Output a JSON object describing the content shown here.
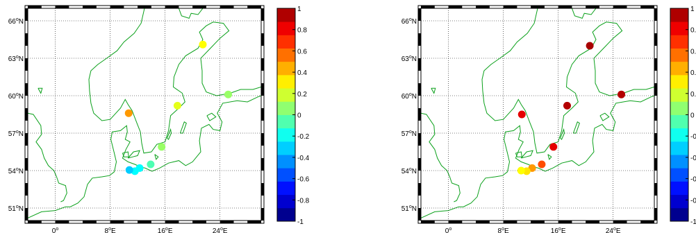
{
  "map_axes": {
    "lat_ticks": [
      {
        "value": 66,
        "label": "66",
        "suffix": "N"
      },
      {
        "value": 63,
        "label": "63",
        "suffix": "N"
      },
      {
        "value": 60,
        "label": "60",
        "suffix": "N"
      },
      {
        "value": 57,
        "label": "57",
        "suffix": "N"
      },
      {
        "value": 54,
        "label": "54",
        "suffix": "N"
      },
      {
        "value": 51,
        "label": "51",
        "suffix": "N"
      }
    ],
    "lon_ticks": [
      {
        "value": 0,
        "label": "0",
        "suffix": ""
      },
      {
        "value": 8,
        "label": "8",
        "suffix": "E"
      },
      {
        "value": 16,
        "label": "16",
        "suffix": "E"
      },
      {
        "value": 24,
        "label": "24",
        "suffix": "E"
      }
    ],
    "lon_range": [
      -4,
      30
    ],
    "lat_range": [
      50,
      67
    ],
    "degree_symbol": "o",
    "grid": true
  },
  "colorbar": {
    "range": [
      -1,
      1
    ],
    "colors": [
      "#00008f",
      "#0000cf",
      "#0010ff",
      "#0050ff",
      "#0090ff",
      "#00cfff",
      "#10ffef",
      "#50ffaf",
      "#90ff70",
      "#cfff30",
      "#ffef00",
      "#ffaf00",
      "#ff7000",
      "#ff3000",
      "#ef0000",
      "#af0000"
    ],
    "left_tick_labels": [
      "1",
      "0.8",
      "0.6",
      "0.4",
      "0.2",
      "0",
      "-0.2",
      "-0.4",
      "-0.6",
      "-0.8",
      "-1"
    ],
    "right_tick_labels": [
      "1",
      "0.",
      "0.",
      "0.",
      "0.",
      "0",
      "-0",
      "-0",
      "-0",
      "-0",
      "-1"
    ]
  },
  "coastline_color": "#0aa01a",
  "chart_data": [
    {
      "type": "map-scatter",
      "colormap": "jet",
      "color_range": [
        -1,
        1
      ],
      "stations": [
        {
          "lon": 21.5,
          "lat": 64.1,
          "value": 0.25
        },
        {
          "lon": 25.2,
          "lat": 60.1,
          "value": 0.05
        },
        {
          "lon": 17.8,
          "lat": 59.2,
          "value": 0.2
        },
        {
          "lon": 10.7,
          "lat": 58.6,
          "value": 0.45
        },
        {
          "lon": 15.5,
          "lat": 55.9,
          "value": 0.05
        },
        {
          "lon": 13.9,
          "lat": 54.5,
          "value": -0.1
        },
        {
          "lon": 12.3,
          "lat": 54.2,
          "value": -0.25
        },
        {
          "lon": 11.6,
          "lat": 53.95,
          "value": -0.25
        },
        {
          "lon": 10.8,
          "lat": 54.05,
          "value": -0.35
        }
      ]
    },
    {
      "type": "map-scatter",
      "colormap": "jet",
      "color_range": [
        -1,
        1
      ],
      "stations": [
        {
          "lon": 20.6,
          "lat": 64.0,
          "value": 0.92
        },
        {
          "lon": 25.2,
          "lat": 60.1,
          "value": 0.9
        },
        {
          "lon": 17.3,
          "lat": 59.2,
          "value": 0.9
        },
        {
          "lon": 10.7,
          "lat": 58.5,
          "value": 0.8
        },
        {
          "lon": 15.3,
          "lat": 55.9,
          "value": 0.8
        },
        {
          "lon": 13.6,
          "lat": 54.5,
          "value": 0.6
        },
        {
          "lon": 12.2,
          "lat": 54.2,
          "value": 0.45
        },
        {
          "lon": 11.4,
          "lat": 53.95,
          "value": 0.3
        },
        {
          "lon": 10.6,
          "lat": 54.0,
          "value": 0.25
        }
      ]
    }
  ]
}
